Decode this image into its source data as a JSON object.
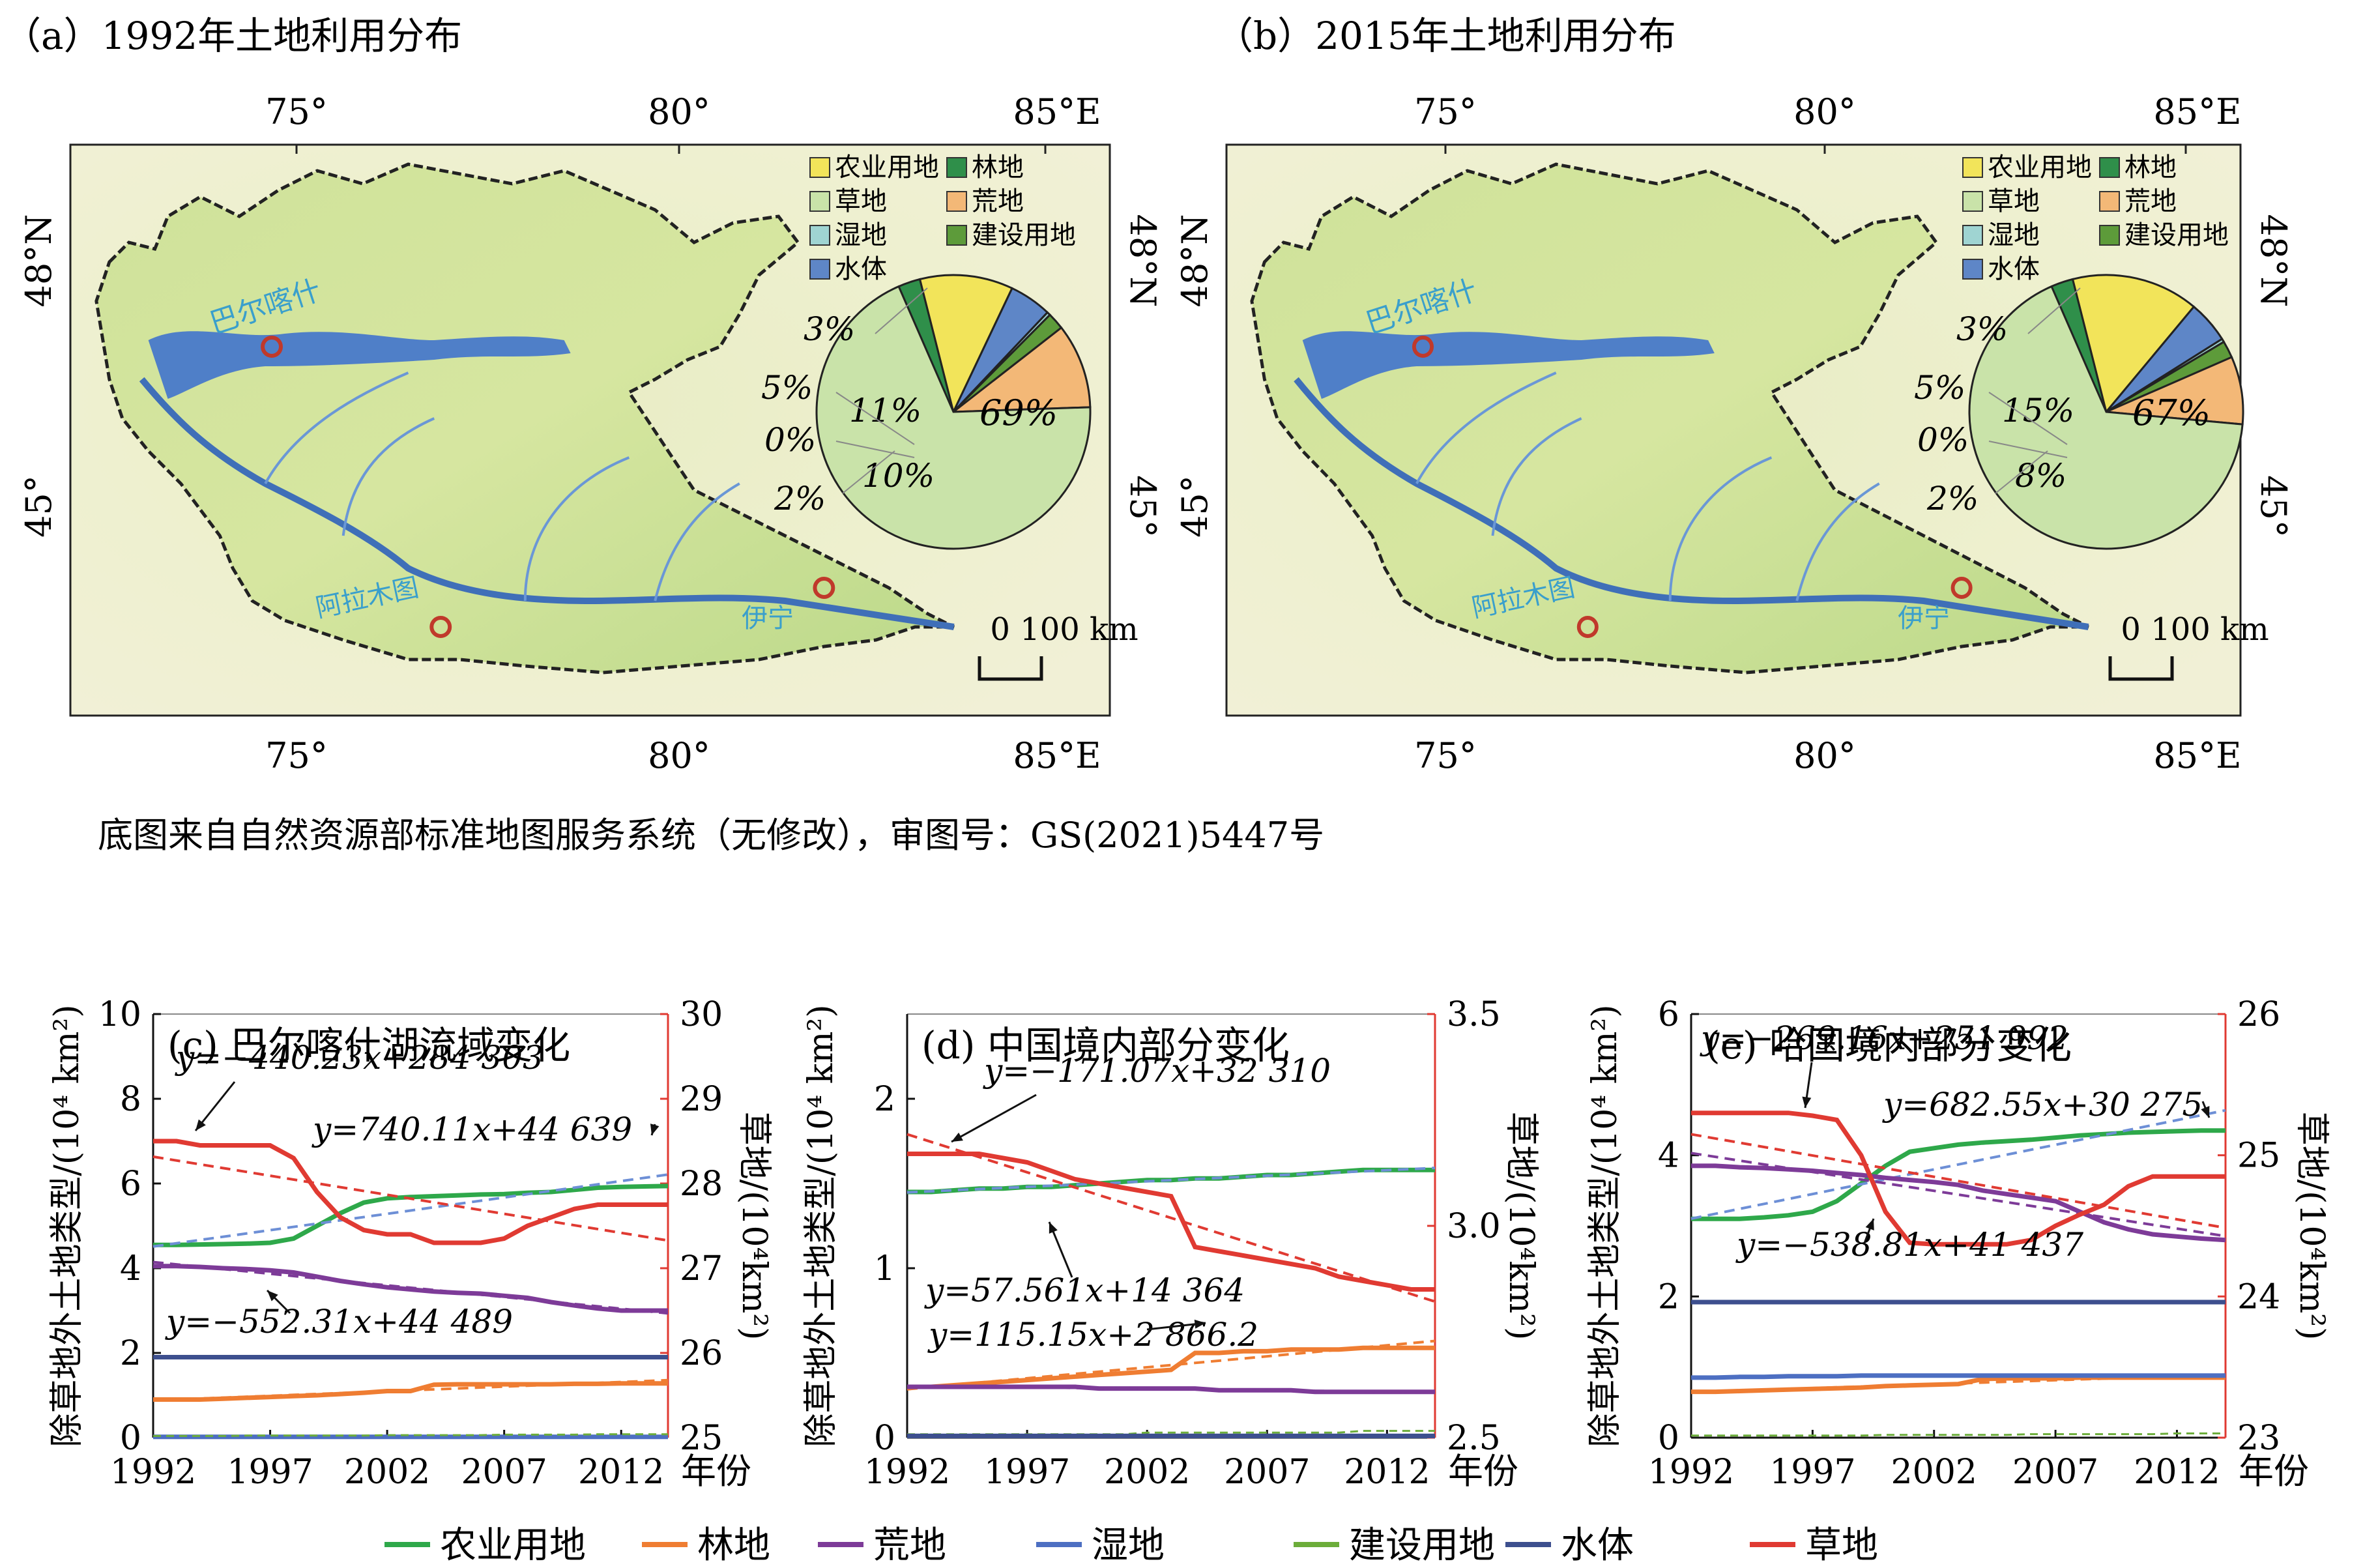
{
  "maps": [
    {
      "title": "（a）1992年土地利用分布",
      "pie": [
        {
          "label": "农业用地",
          "pct": 11,
          "color": "#f2e45a"
        },
        {
          "label": "草地",
          "pct": 69,
          "color": "#c9e3a9"
        },
        {
          "label": "荒地",
          "pct": 10,
          "color": "#f3b877"
        },
        {
          "label": "湿地",
          "pct": 0,
          "color": "#9fd4d2"
        },
        {
          "label": "水体",
          "pct": 5,
          "color": "#5e86c7"
        },
        {
          "label": "建设用地",
          "pct": 2,
          "color": "#5d9b3a"
        },
        {
          "label": "林地",
          "pct": 3,
          "color": "#2f8f4a"
        }
      ],
      "outside_labels": [
        "3%",
        "5%",
        "0%",
        "2%"
      ],
      "inside_labels": [
        "11%",
        "69%",
        "10%"
      ]
    },
    {
      "title": "（b）2015年土地利用分布",
      "pie": [
        {
          "label": "农业用地",
          "pct": 15,
          "color": "#f2e45a"
        },
        {
          "label": "草地",
          "pct": 67,
          "color": "#c9e3a9"
        },
        {
          "label": "荒地",
          "pct": 8,
          "color": "#f3b877"
        },
        {
          "label": "湿地",
          "pct": 0,
          "color": "#9fd4d2"
        },
        {
          "label": "水体",
          "pct": 5,
          "color": "#5e86c7"
        },
        {
          "label": "建设用地",
          "pct": 2,
          "color": "#5d9b3a"
        },
        {
          "label": "林地",
          "pct": 3,
          "color": "#2f8f4a"
        }
      ],
      "outside_labels": [
        "3%",
        "5%",
        "0%",
        "2%"
      ],
      "inside_labels": [
        "15%",
        "67%",
        "8%"
      ]
    }
  ],
  "map_common": {
    "top_ticks": [
      "75°",
      "80°",
      "85°E"
    ],
    "bottom_ticks": [
      "75°",
      "80°",
      "85°E"
    ],
    "left_ticks": [
      "48°N",
      "45°"
    ],
    "right_ticks": [
      "48°N",
      "45°"
    ],
    "legend": [
      {
        "label": "农业用地",
        "color": "#f2e45a"
      },
      {
        "label": "林地",
        "color": "#2f8f4a"
      },
      {
        "label": "草地",
        "color": "#c9e3a9"
      },
      {
        "label": "荒地",
        "color": "#f3b877"
      },
      {
        "label": "湿地",
        "color": "#9fd4d2"
      },
      {
        "label": "建设用地",
        "color": "#5d9b3a"
      },
      {
        "label": "水体",
        "color": "#5e86c7"
      }
    ],
    "places": [
      "巴尔喀什",
      "阿拉木图",
      "伊宁"
    ],
    "scale": "0 100 km"
  },
  "source_note": "底图来自自然资源部标准地图服务系统（无修改），审图号：GS(2021)5447号",
  "chart_data": [
    {
      "type": "line",
      "title": "(c) 巴尔喀什湖流域变化",
      "ylabel": "除草地外土地类型/(10⁴ km²)",
      "y2label": "草地/(10⁴km²)",
      "xlabel": "年份",
      "x": [
        1992,
        1993,
        1994,
        1995,
        1996,
        1997,
        1998,
        1999,
        2000,
        2001,
        2002,
        2003,
        2004,
        2005,
        2006,
        2007,
        2008,
        2009,
        2010,
        2011,
        2012,
        2013,
        2014
      ],
      "xticks": [
        "1992",
        "1997",
        "2002",
        "2007",
        "2012"
      ],
      "ylim": [
        0,
        10
      ],
      "yticks": [
        "0",
        "2",
        "4",
        "6",
        "8",
        "10"
      ],
      "y2lim": [
        25,
        30
      ],
      "y2ticks": [
        "25",
        "26",
        "27",
        "28",
        "29",
        "30"
      ],
      "series": [
        {
          "name": "农业用地",
          "color": "#2ea84a",
          "values": [
            4.55,
            4.55,
            4.56,
            4.57,
            4.58,
            4.6,
            4.7,
            5.0,
            5.3,
            5.55,
            5.65,
            5.68,
            5.7,
            5.72,
            5.74,
            5.75,
            5.78,
            5.8,
            5.85,
            5.9,
            5.92,
            5.93,
            5.94
          ]
        },
        {
          "name": "林地",
          "color": "#ef7d32",
          "values": [
            0.9,
            0.9,
            0.9,
            0.92,
            0.94,
            0.96,
            0.98,
            1.0,
            1.03,
            1.06,
            1.1,
            1.1,
            1.25,
            1.26,
            1.26,
            1.26,
            1.26,
            1.26,
            1.27,
            1.27,
            1.28,
            1.28,
            1.28
          ]
        },
        {
          "name": "荒地",
          "color": "#7d3b98",
          "values": [
            4.05,
            4.05,
            4.03,
            4.0,
            3.98,
            3.95,
            3.9,
            3.8,
            3.7,
            3.62,
            3.55,
            3.5,
            3.45,
            3.42,
            3.4,
            3.35,
            3.3,
            3.2,
            3.12,
            3.05,
            3.0,
            3.0,
            3.0
          ]
        },
        {
          "name": "湿地",
          "color": "#4d6fc2",
          "values": [
            0.02,
            0.02,
            0.02,
            0.02,
            0.02,
            0.02,
            0.02,
            0.02,
            0.02,
            0.02,
            0.02,
            0.02,
            0.02,
            0.02,
            0.02,
            0.02,
            0.02,
            0.02,
            0.02,
            0.02,
            0.02,
            0.02,
            0.02
          ]
        },
        {
          "name": "建设用地",
          "color": "#6cad3a",
          "values": [
            0.04,
            0.04,
            0.04,
            0.04,
            0.05,
            0.05,
            0.05,
            0.05,
            0.05,
            0.05,
            0.06,
            0.06,
            0.06,
            0.06,
            0.06,
            0.07,
            0.07,
            0.07,
            0.07,
            0.08,
            0.08,
            0.08,
            0.08
          ]
        },
        {
          "name": "水体",
          "color": "#3d4f8e",
          "values": [
            1.9,
            1.9,
            1.9,
            1.9,
            1.9,
            1.9,
            1.9,
            1.9,
            1.9,
            1.9,
            1.9,
            1.9,
            1.9,
            1.9,
            1.9,
            1.9,
            1.9,
            1.9,
            1.9,
            1.9,
            1.9,
            1.9,
            1.9
          ]
        },
        {
          "name": "草地",
          "axis": "right",
          "color": "#e03a32",
          "values": [
            28.5,
            28.5,
            28.45,
            28.45,
            28.45,
            28.45,
            28.3,
            27.9,
            27.6,
            27.45,
            27.4,
            27.4,
            27.3,
            27.3,
            27.3,
            27.35,
            27.5,
            27.6,
            27.7,
            27.75,
            27.75,
            27.75,
            27.75
          ]
        }
      ],
      "annotations": [
        "y=−440.23x+284 303",
        "y=740.11x+44 639",
        "y=−552.31x+44 489"
      ]
    },
    {
      "type": "line",
      "title": "(d) 中国境内部分变化",
      "ylabel": "除草地外土地类型/(10⁴ km²)",
      "y2label": "草地/(10⁴km²)",
      "xlabel": "年份",
      "x": [
        1992,
        1993,
        1994,
        1995,
        1996,
        1997,
        1998,
        1999,
        2000,
        2001,
        2002,
        2003,
        2004,
        2005,
        2006,
        2007,
        2008,
        2009,
        2010,
        2011,
        2012,
        2013,
        2014
      ],
      "xticks": [
        "1992",
        "1997",
        "2002",
        "2007",
        "2012"
      ],
      "ylim": [
        0,
        2.5
      ],
      "yticks": [
        "0",
        "1",
        "2"
      ],
      "y2lim": [
        2.5,
        3.5
      ],
      "y2ticks": [
        "2.5",
        "3.0",
        "3.5"
      ],
      "series": [
        {
          "name": "农业用地",
          "color": "#2ea84a",
          "values": [
            1.45,
            1.45,
            1.46,
            1.47,
            1.47,
            1.48,
            1.48,
            1.49,
            1.5,
            1.51,
            1.52,
            1.52,
            1.53,
            1.53,
            1.54,
            1.55,
            1.55,
            1.56,
            1.57,
            1.58,
            1.58,
            1.58,
            1.58
          ]
        },
        {
          "name": "林地",
          "color": "#ef7d32",
          "values": [
            0.3,
            0.3,
            0.31,
            0.32,
            0.33,
            0.34,
            0.35,
            0.36,
            0.37,
            0.38,
            0.39,
            0.4,
            0.5,
            0.5,
            0.51,
            0.51,
            0.52,
            0.52,
            0.52,
            0.53,
            0.53,
            0.53,
            0.53
          ]
        },
        {
          "name": "荒地",
          "color": "#7d3b98",
          "values": [
            0.3,
            0.3,
            0.3,
            0.3,
            0.3,
            0.3,
            0.3,
            0.3,
            0.29,
            0.29,
            0.29,
            0.29,
            0.29,
            0.28,
            0.28,
            0.28,
            0.28,
            0.27,
            0.27,
            0.27,
            0.27,
            0.27,
            0.27
          ]
        },
        {
          "name": "湿地",
          "color": "#4d6fc2",
          "values": [
            0.01,
            0.01,
            0.01,
            0.01,
            0.01,
            0.01,
            0.01,
            0.01,
            0.01,
            0.01,
            0.01,
            0.01,
            0.01,
            0.01,
            0.01,
            0.01,
            0.01,
            0.01,
            0.01,
            0.01,
            0.01,
            0.01,
            0.01
          ]
        },
        {
          "name": "建设用地",
          "color": "#6cad3a",
          "values": [
            0.02,
            0.02,
            0.02,
            0.02,
            0.02,
            0.02,
            0.02,
            0.02,
            0.02,
            0.02,
            0.03,
            0.03,
            0.03,
            0.03,
            0.03,
            0.03,
            0.03,
            0.03,
            0.03,
            0.04,
            0.04,
            0.04,
            0.04
          ]
        },
        {
          "name": "水体",
          "color": "#3d4f8e",
          "values": [
            0.01,
            0.01,
            0.01,
            0.01,
            0.01,
            0.01,
            0.01,
            0.01,
            0.01,
            0.01,
            0.01,
            0.01,
            0.01,
            0.01,
            0.01,
            0.01,
            0.01,
            0.01,
            0.01,
            0.01,
            0.01,
            0.01,
            0.01
          ]
        },
        {
          "name": "草地",
          "axis": "right",
          "color": "#e03a32",
          "values": [
            3.17,
            3.17,
            3.17,
            3.17,
            3.16,
            3.15,
            3.13,
            3.11,
            3.1,
            3.09,
            3.08,
            3.07,
            2.95,
            2.94,
            2.93,
            2.92,
            2.91,
            2.9,
            2.88,
            2.87,
            2.86,
            2.85,
            2.85
          ]
        }
      ],
      "annotations": [
        "y=−171.07x+32 310",
        "y=57.561x+14 364",
        "y=115.15x+2 866.2"
      ]
    },
    {
      "type": "line",
      "title": "(e) 哈国境内部分变化",
      "ylabel": "除草地外土地类型/(10⁴ km²)",
      "y2label": "草地/(10⁴km²)",
      "xlabel": "年份",
      "x": [
        1992,
        1993,
        1994,
        1995,
        1996,
        1997,
        1998,
        1999,
        2000,
        2001,
        2002,
        2003,
        2004,
        2005,
        2006,
        2007,
        2008,
        2009,
        2010,
        2011,
        2012,
        2013,
        2014
      ],
      "xticks": [
        "1992",
        "1997",
        "2002",
        "2007",
        "2012"
      ],
      "ylim": [
        0,
        6
      ],
      "yticks": [
        "0",
        "2",
        "4",
        "6"
      ],
      "y2lim": [
        23,
        26
      ],
      "y2ticks": [
        "23",
        "24",
        "25",
        "26"
      ],
      "series": [
        {
          "name": "农业用地",
          "color": "#2ea84a",
          "values": [
            3.1,
            3.1,
            3.1,
            3.12,
            3.15,
            3.2,
            3.35,
            3.6,
            3.85,
            4.05,
            4.1,
            4.15,
            4.18,
            4.2,
            4.22,
            4.25,
            4.28,
            4.3,
            4.32,
            4.33,
            4.34,
            4.35,
            4.35
          ]
        },
        {
          "name": "林地",
          "color": "#ef7d32",
          "values": [
            0.65,
            0.65,
            0.66,
            0.67,
            0.68,
            0.69,
            0.7,
            0.71,
            0.73,
            0.74,
            0.75,
            0.76,
            0.83,
            0.84,
            0.84,
            0.84,
            0.85,
            0.85,
            0.85,
            0.85,
            0.85,
            0.85,
            0.85
          ]
        },
        {
          "name": "荒地",
          "color": "#7d3b98",
          "values": [
            3.85,
            3.85,
            3.83,
            3.82,
            3.8,
            3.78,
            3.75,
            3.72,
            3.68,
            3.65,
            3.62,
            3.58,
            3.5,
            3.45,
            3.4,
            3.35,
            3.2,
            3.05,
            2.95,
            2.88,
            2.85,
            2.82,
            2.8
          ]
        },
        {
          "name": "湿地",
          "color": "#4d6fc2",
          "values": [
            0.85,
            0.85,
            0.86,
            0.86,
            0.87,
            0.87,
            0.87,
            0.88,
            0.88,
            0.88,
            0.88,
            0.88,
            0.88,
            0.88,
            0.88,
            0.88,
            0.88,
            0.88,
            0.88,
            0.88,
            0.88,
            0.88,
            0.88
          ]
        },
        {
          "name": "建设用地",
          "color": "#6cad3a",
          "values": [
            0.03,
            0.03,
            0.03,
            0.03,
            0.03,
            0.03,
            0.03,
            0.03,
            0.04,
            0.04,
            0.04,
            0.04,
            0.04,
            0.04,
            0.05,
            0.05,
            0.05,
            0.05,
            0.05,
            0.05,
            0.06,
            0.06,
            0.06
          ]
        },
        {
          "name": "水体",
          "color": "#3d4f8e",
          "values": [
            1.92,
            1.92,
            1.92,
            1.92,
            1.92,
            1.92,
            1.92,
            1.92,
            1.92,
            1.92,
            1.92,
            1.92,
            1.92,
            1.92,
            1.92,
            1.92,
            1.92,
            1.92,
            1.92,
            1.92,
            1.92,
            1.92,
            1.92
          ]
        },
        {
          "name": "草地",
          "axis": "right",
          "color": "#e03a32",
          "values": [
            25.3,
            25.3,
            25.3,
            25.3,
            25.3,
            25.28,
            25.25,
            25.0,
            24.6,
            24.38,
            24.37,
            24.37,
            24.37,
            24.37,
            24.4,
            24.5,
            24.58,
            24.65,
            24.78,
            24.85,
            24.85,
            24.85,
            24.85
          ]
        }
      ],
      "annotations": [
        "y=−269.16x+251 992",
        "y=682.55x+30 275",
        "y=−538.81x+41 437"
      ]
    }
  ],
  "bottom_legend": [
    {
      "label": "农业用地",
      "color": "#2ea84a"
    },
    {
      "label": "林地",
      "color": "#ef7d32"
    },
    {
      "label": "荒地",
      "color": "#7d3b98"
    },
    {
      "label": "湿地",
      "color": "#4d6fc2"
    },
    {
      "label": "建设用地",
      "color": "#6cad3a"
    },
    {
      "label": "水体",
      "color": "#3d4f8e"
    },
    {
      "label": "草地",
      "color": "#e03a32"
    }
  ]
}
